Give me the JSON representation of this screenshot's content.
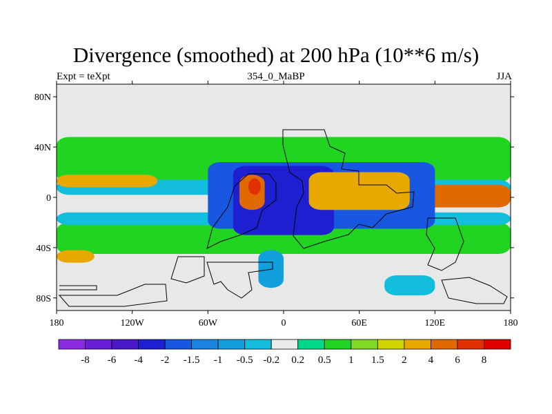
{
  "title": "Divergence (smoothed) at 200 hPa (10**6 m/s)",
  "left_string": "Expt = teXpt",
  "center_string": "354_0_MaBP",
  "right_string": "JJA",
  "map": {
    "lat_ticks": [
      "80N",
      "40N",
      "0",
      "40S",
      "80S"
    ],
    "lon_ticks": [
      "180",
      "120W",
      "60W",
      "0",
      "60E",
      "120E",
      "180"
    ],
    "lat_range": [
      -90,
      90
    ],
    "lon_range": [
      -180,
      180
    ],
    "missing_color": "#e8e8e8"
  },
  "colorbar": {
    "colors": [
      "#8a2be2",
      "#6a1fd6",
      "#4a18c8",
      "#1f1fd2",
      "#1858e0",
      "#1a84e2",
      "#12a0dc",
      "#12bedc",
      "#eaeaea",
      "#00d98a",
      "#22d422",
      "#80d922",
      "#d0d400",
      "#e8a800",
      "#e06a00",
      "#e03000",
      "#e00000"
    ],
    "labels": [
      "-8",
      "-6",
      "-4",
      "-2",
      "-1.5",
      "-1",
      "-0.5",
      "-0.2",
      "0.2",
      "0.5",
      "1",
      "1.5",
      "2",
      "4",
      "6",
      "8"
    ]
  },
  "fields": [
    {
      "color": "#22d422",
      "lon1": -180,
      "lon2": 180,
      "lat1": 12,
      "lat2": 48
    },
    {
      "color": "#22d422",
      "lon1": -180,
      "lon2": 180,
      "lat1": -45,
      "lat2": -20
    },
    {
      "color": "#12bedc",
      "lon1": -180,
      "lon2": 180,
      "lat1": 2,
      "lat2": 14
    },
    {
      "color": "#12bedc",
      "lon1": -180,
      "lon2": 180,
      "lat1": -22,
      "lat2": -12
    },
    {
      "color": "#e8a800",
      "lon1": -180,
      "lon2": -100,
      "lat1": 8,
      "lat2": 18
    },
    {
      "color": "#e06a00",
      "lon1": 100,
      "lon2": 180,
      "lat1": -8,
      "lat2": 10
    },
    {
      "color": "#1858e0",
      "lon1": -60,
      "lon2": 120,
      "lat1": -25,
      "lat2": 28
    },
    {
      "color": "#1f1fd2",
      "lon1": -40,
      "lon2": 40,
      "lat1": -30,
      "lat2": 25
    },
    {
      "color": "#e8a800",
      "lon1": 20,
      "lon2": 100,
      "lat1": -10,
      "lat2": 20
    },
    {
      "color": "#e06a00",
      "lon1": -35,
      "lon2": -15,
      "lat1": -10,
      "lat2": 18
    },
    {
      "color": "#e03000",
      "lon1": -28,
      "lon2": -18,
      "lat1": 2,
      "lat2": 15
    },
    {
      "color": "#12a0dc",
      "lon1": -20,
      "lon2": 0,
      "lat1": -72,
      "lat2": -42
    },
    {
      "color": "#12bedc",
      "lon1": 80,
      "lon2": 120,
      "lat1": -78,
      "lat2": -62
    },
    {
      "color": "#e8a800",
      "lon1": -180,
      "lon2": -150,
      "lat1": -52,
      "lat2": -42
    }
  ]
}
